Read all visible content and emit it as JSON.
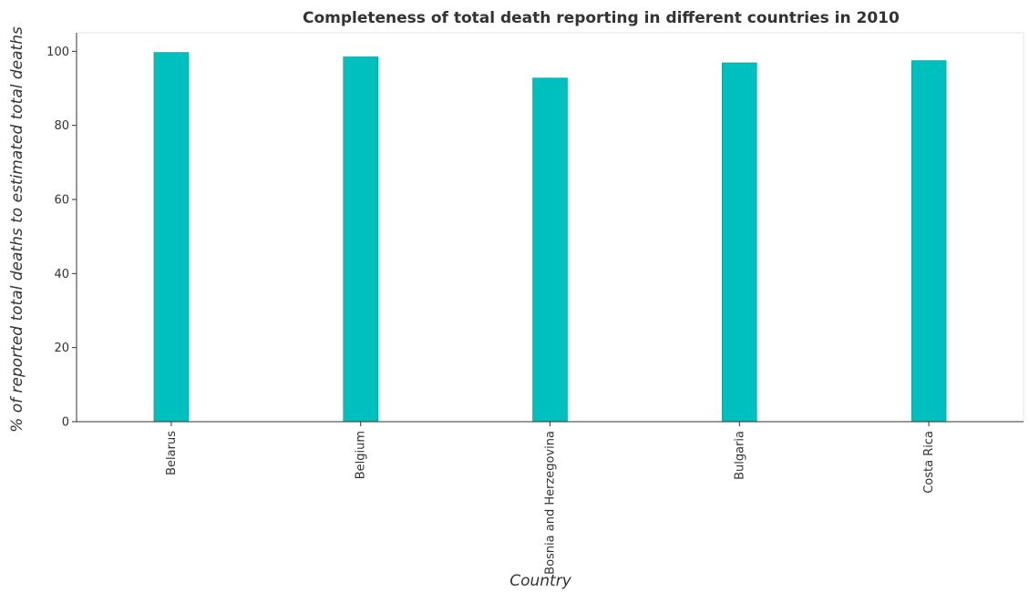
{
  "chart_data": {
    "type": "bar",
    "title": "Completeness of total death reporting in different countries in 2010",
    "xlabel": "Country",
    "ylabel": "% of reported total deaths to estimated total deaths",
    "categories": [
      "Belarus",
      "Belgium",
      "Bosnia and Herzegovina",
      "Bulgaria",
      "Costa Rica"
    ],
    "values": [
      99.7,
      98.5,
      92.8,
      96.9,
      97.5
    ],
    "ylim": [
      0,
      105
    ],
    "yticks": [
      0,
      20,
      40,
      60,
      80,
      100
    ],
    "grid": false,
    "legend": "none",
    "bar_color": "#00bfbf",
    "bar_border_color": "#008b8b"
  }
}
